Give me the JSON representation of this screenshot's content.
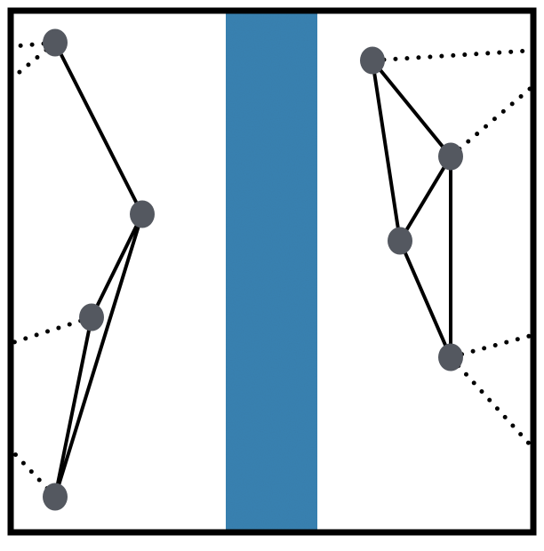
{
  "diagram": {
    "border_color": "#000000",
    "river_color": "#3a83b3",
    "node_color": "#545860",
    "edge_color": "#000000",
    "left_region": {
      "nodes": [
        {
          "id": "L1"
        },
        {
          "id": "L2"
        },
        {
          "id": "L3"
        },
        {
          "id": "L4"
        }
      ],
      "edges": [
        {
          "from": "L1",
          "to": "L2"
        },
        {
          "from": "L2",
          "to": "L3"
        },
        {
          "from": "L2",
          "to": "L4"
        },
        {
          "from": "L3",
          "to": "L4"
        }
      ],
      "dotted_edges": [
        {
          "node": "L1",
          "direction": "off-left"
        },
        {
          "node": "L1",
          "direction": "off-left"
        },
        {
          "node": "L3",
          "direction": "off-left"
        },
        {
          "node": "L4",
          "direction": "off-left"
        }
      ]
    },
    "right_region": {
      "nodes": [
        {
          "id": "R1"
        },
        {
          "id": "R2"
        },
        {
          "id": "R3"
        },
        {
          "id": "R4"
        }
      ],
      "edges": [
        {
          "from": "R1",
          "to": "R2"
        },
        {
          "from": "R1",
          "to": "R3"
        },
        {
          "from": "R2",
          "to": "R3"
        },
        {
          "from": "R2",
          "to": "R4"
        },
        {
          "from": "R3",
          "to": "R4"
        }
      ],
      "dotted_edges": [
        {
          "node": "R1",
          "direction": "off-right"
        },
        {
          "node": "R2",
          "direction": "off-right"
        },
        {
          "node": "R4",
          "direction": "off-right"
        },
        {
          "node": "R4",
          "direction": "off-right"
        }
      ]
    }
  }
}
